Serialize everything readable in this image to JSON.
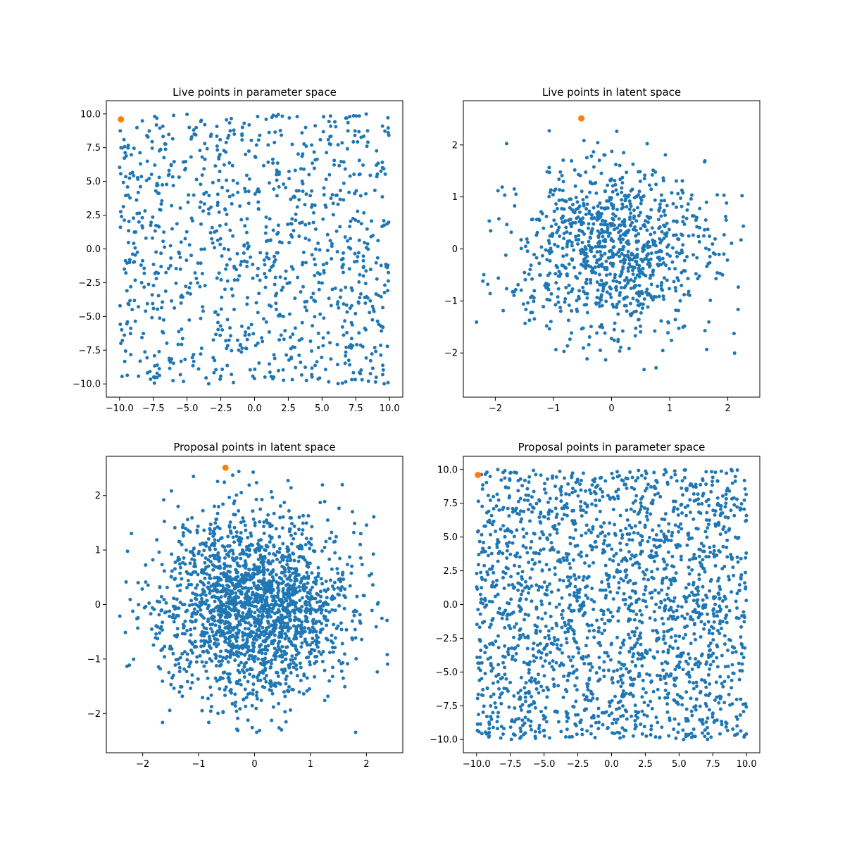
{
  "figure": {
    "background": "#ffffff"
  },
  "chart_data": [
    {
      "type": "scatter",
      "title": "Live points in parameter space",
      "xlabel": "",
      "ylabel": "",
      "xlim": [
        -10.98,
        10.98
      ],
      "ylim": [
        -10.98,
        10.98
      ],
      "xticks": [
        -10.0,
        -7.5,
        -5.0,
        -2.5,
        0.0,
        2.5,
        5.0,
        7.5,
        10.0
      ],
      "yticks": [
        -10.0,
        -7.5,
        -5.0,
        -2.5,
        0.0,
        2.5,
        5.0,
        7.5,
        10.0
      ],
      "xtick_labels": [
        "−10.0",
        "−7.5",
        "−5.0",
        "−2.5",
        "0.0",
        "2.5",
        "5.0",
        "7.5",
        "10.0"
      ],
      "ytick_labels": [
        "−10.0",
        "−7.5",
        "−5.0",
        "−2.5",
        "0.0",
        "2.5",
        "5.0",
        "7.5",
        "10.0"
      ],
      "distribution": "uniform",
      "grid": false,
      "series": [
        {
          "color": "#1f77b4",
          "marker_size": 5,
          "count": 1000,
          "x_range": [
            -10,
            10
          ],
          "y_range": [
            -10,
            10
          ],
          "points": []
        },
        {
          "color": "#ff7f0e",
          "marker_size": 9,
          "points": [
            [
              -9.9,
              9.6
            ]
          ]
        }
      ]
    },
    {
      "type": "scatter",
      "title": "Live points in latent space",
      "xlabel": "",
      "ylabel": "",
      "xlim": [
        -2.55,
        2.55
      ],
      "ylim": [
        -2.85,
        2.85
      ],
      "xticks": [
        -2,
        -1,
        0,
        1,
        2
      ],
      "yticks": [
        -2,
        -1,
        0,
        1,
        2
      ],
      "xtick_labels": [
        "−2",
        "−1",
        "0",
        "1",
        "2"
      ],
      "ytick_labels": [
        "−2",
        "−1",
        "0",
        "1",
        "2"
      ],
      "distribution": "gaussian",
      "grid": false,
      "series": [
        {
          "color": "#1f77b4",
          "marker_size": 5,
          "count": 1000,
          "sigma": 0.85,
          "x_range": [
            -2.35,
            2.35
          ],
          "y_range": [
            -2.6,
            2.45
          ],
          "points": []
        },
        {
          "color": "#ff7f0e",
          "marker_size": 9,
          "points": [
            [
              -0.52,
              2.51
            ]
          ]
        }
      ]
    },
    {
      "type": "scatter",
      "title": "Proposal points in latent space",
      "xlabel": "",
      "ylabel": "",
      "xlim": [
        -2.65,
        2.65
      ],
      "ylim": [
        -2.72,
        2.72
      ],
      "xticks": [
        -2,
        -1,
        0,
        1,
        2
      ],
      "yticks": [
        -2,
        -1,
        0,
        1,
        2
      ],
      "xtick_labels": [
        "−2",
        "−1",
        "0",
        "1",
        "2"
      ],
      "ytick_labels": [
        "−2",
        "−1",
        "0",
        "1",
        "2"
      ],
      "distribution": "gaussian",
      "grid": false,
      "series": [
        {
          "color": "#1f77b4",
          "marker_size": 5,
          "count": 2000,
          "sigma": 0.85,
          "x_range": [
            -2.42,
            2.42
          ],
          "y_range": [
            -2.45,
            2.5
          ],
          "points": []
        },
        {
          "color": "#ff7f0e",
          "marker_size": 9,
          "points": [
            [
              -0.52,
              2.51
            ]
          ]
        }
      ]
    },
    {
      "type": "scatter",
      "title": "Proposal points in parameter space",
      "xlabel": "",
      "ylabel": "",
      "xlim": [
        -10.98,
        10.98
      ],
      "ylim": [
        -10.98,
        10.98
      ],
      "xticks": [
        -10.0,
        -7.5,
        -5.0,
        -2.5,
        0.0,
        2.5,
        5.0,
        7.5,
        10.0
      ],
      "yticks": [
        -10.0,
        -7.5,
        -5.0,
        -2.5,
        0.0,
        2.5,
        5.0,
        7.5,
        10.0
      ],
      "xtick_labels": [
        "−10.0",
        "−7.5",
        "−5.0",
        "−2.5",
        "0.0",
        "2.5",
        "5.0",
        "7.5",
        "10.0"
      ],
      "ytick_labels": [
        "−10.0",
        "−7.5",
        "−5.0",
        "−2.5",
        "0.0",
        "2.5",
        "5.0",
        "7.5",
        "10.0"
      ],
      "distribution": "uniform",
      "grid": false,
      "series": [
        {
          "color": "#1f77b4",
          "marker_size": 5,
          "count": 2000,
          "x_range": [
            -10,
            10
          ],
          "y_range": [
            -10,
            10
          ],
          "points": []
        },
        {
          "color": "#ff7f0e",
          "marker_size": 9,
          "points": [
            [
              -9.9,
              9.6
            ]
          ]
        }
      ]
    }
  ]
}
